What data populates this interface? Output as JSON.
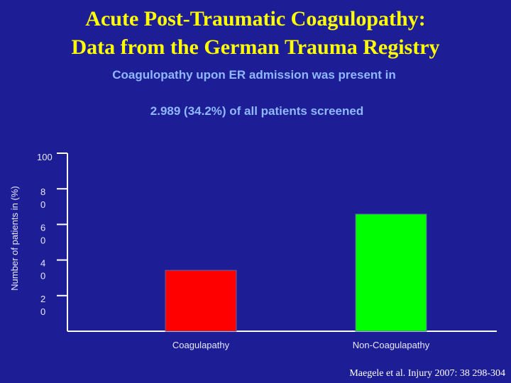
{
  "chart_data": {
    "type": "bar",
    "title": "Acute Post-Traumatic Coagulopathy:",
    "title_line2": "Data from the German Trauma Registry",
    "subtitle": "Coagulopathy upon ER admission was present in",
    "subtitle_line2": "2.989 (34.2%) of all patients screened",
    "y_label": "Number of patients in (%)",
    "categories": [
      "Coagulapathy",
      "Non-Coagulapathy"
    ],
    "values": [
      34.2,
      65.8
    ],
    "colors": [
      "#ff0000",
      "#00ff00"
    ],
    "ylim": [
      0,
      100
    ],
    "yticks": [
      20,
      40,
      60,
      80,
      100
    ],
    "source": "Maegele et al. Injury 2007: 38 298-304"
  }
}
